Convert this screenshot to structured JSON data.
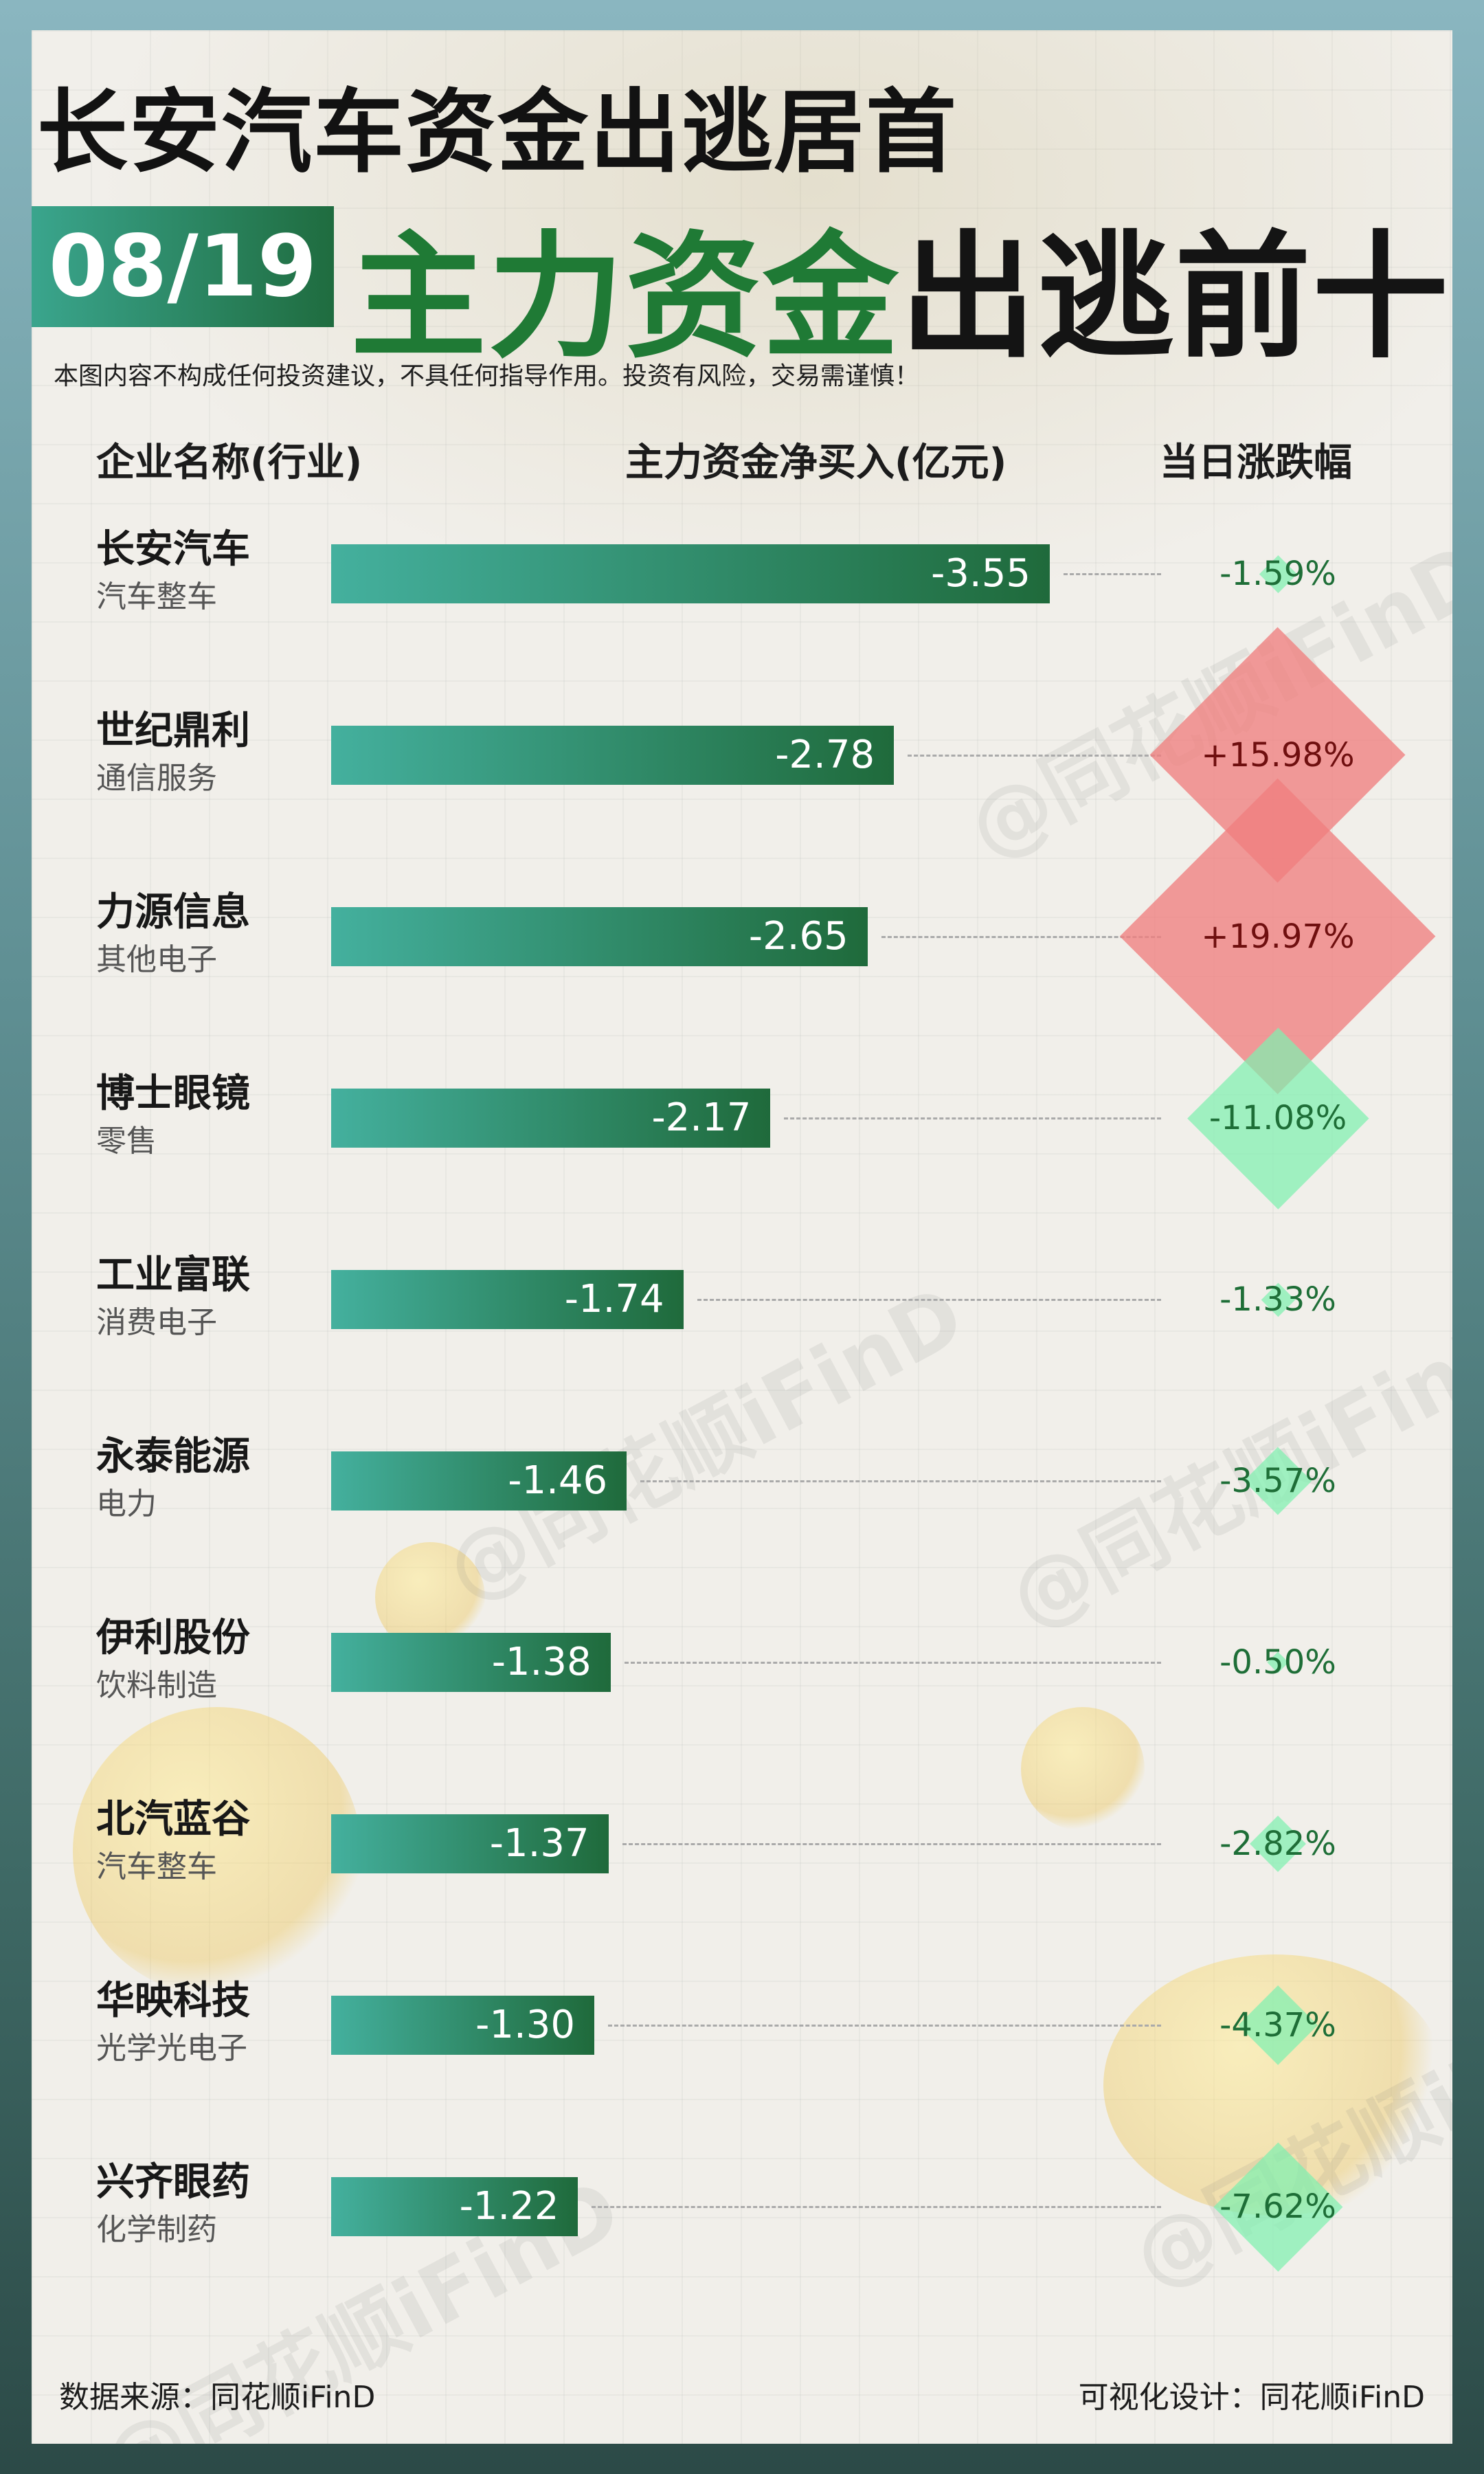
{
  "header": {
    "title": "长安汽车资金出逃居首",
    "date": "08/19",
    "subtitle_green": "主力资金",
    "subtitle_black": "出逃前十",
    "disclaimer": "本图内容不构成任何投资建议，不具任何指导作用。投资有风险，交易需谨慎！"
  },
  "columns": {
    "company": "企业名称(行业)",
    "netflow": "主力资金净买入(亿元)",
    "change": "当日涨跌幅"
  },
  "watermark": "@同花顺iFinD",
  "colors": {
    "bar_start": "#44b09e",
    "bar_end": "#1f6a3b",
    "up_diamond": "#ef7f7f",
    "down_diamond": "#7ff0b0",
    "down_text": "#1e6e37",
    "up_text": "#8b1e1e"
  },
  "chart_data": {
    "type": "bar",
    "title": "主力资金出逃前十",
    "xlabel": "主力资金净买入(亿元)",
    "categories": [
      "长安汽车",
      "世纪鼎利",
      "力源信息",
      "博士眼镜",
      "工业富联",
      "永泰能源",
      "伊利股份",
      "北汽蓝谷",
      "华映科技",
      "兴齐眼药"
    ],
    "industries": [
      "汽车整车",
      "通信服务",
      "其他电子",
      "零售",
      "消费电子",
      "电力",
      "饮料制造",
      "汽车整车",
      "光学光电子",
      "化学制药"
    ],
    "values": [
      -3.55,
      -2.78,
      -2.65,
      -2.17,
      -1.74,
      -1.46,
      -1.38,
      -1.37,
      -1.3,
      -1.22
    ],
    "value_labels": [
      "-3.55",
      "-2.78",
      "-2.65",
      "-2.17",
      "-1.74",
      "-1.46",
      "-1.38",
      "-1.37",
      "-1.30",
      "-1.22"
    ],
    "changes": [
      -1.59,
      15.98,
      19.97,
      -11.08,
      -1.33,
      -3.57,
      -0.5,
      -2.82,
      -4.37,
      -7.62
    ],
    "change_labels": [
      "-1.59%",
      "+15.98%",
      "+19.97%",
      "-11.08%",
      "-1.33%",
      "-3.57%",
      "-0.50%",
      "-2.82%",
      "-4.37%",
      "-7.62%"
    ],
    "xlim": [
      0,
      -3.55
    ]
  },
  "footer": {
    "source": "数据来源：同花顺iFinD",
    "design": "可视化设计：同花顺iFinD"
  }
}
